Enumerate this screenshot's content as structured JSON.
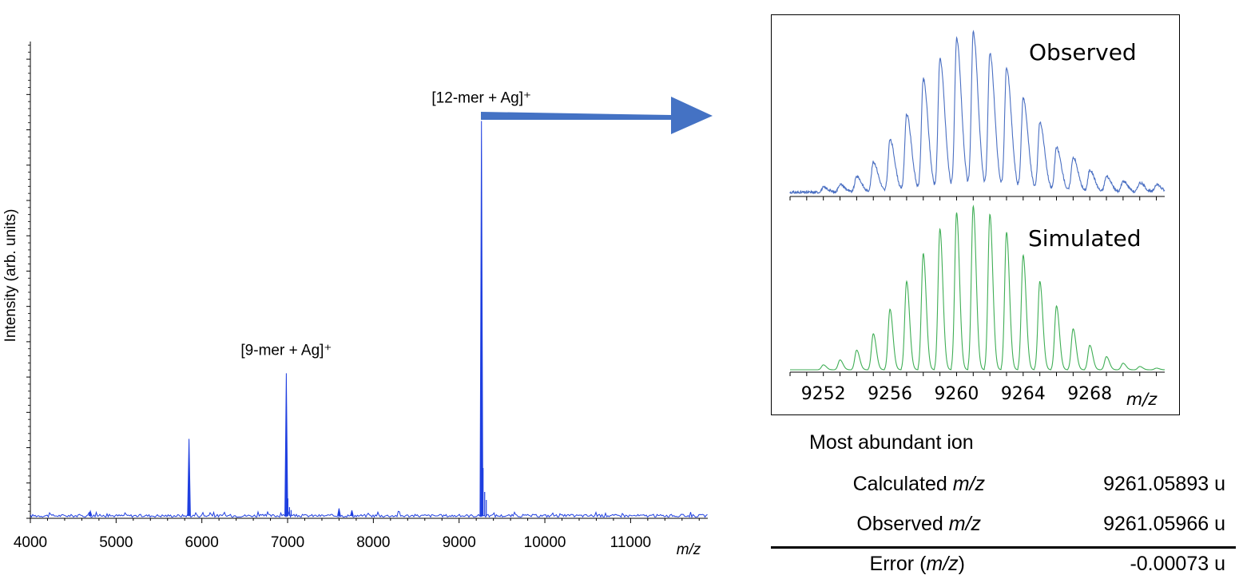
{
  "chart_data": [
    {
      "type": "line",
      "xlabel": "m/z",
      "ylabel": "Intensity (arb. units)",
      "xlim": [
        4000,
        11900
      ],
      "ylim": [
        0,
        1.2
      ],
      "x_ticks": [
        4000,
        5000,
        6000,
        7000,
        8000,
        9000,
        10000,
        11000
      ],
      "color": "#1f3fe0",
      "peaks": [
        {
          "x": 4700,
          "y": 0.018
        },
        {
          "x": 5850,
          "y": 0.2
        },
        {
          "x": 6985,
          "y": 0.365
        },
        {
          "x": 7600,
          "y": 0.025
        },
        {
          "x": 7750,
          "y": 0.02
        },
        {
          "x": 9261,
          "y": 1.0
        }
      ],
      "annotations": [
        {
          "text": "[9-mer + Ag]⁺",
          "x": 6985,
          "y": 0.365
        },
        {
          "text": "[12-mer + Ag]⁺",
          "x": 9261,
          "y": 1.0
        }
      ]
    },
    {
      "type": "line",
      "panel": "Observed",
      "color": "#4a6fc2",
      "xlabel": "m/z",
      "xlim": [
        9250,
        9272.5
      ],
      "x_ticks": [
        9252,
        9256,
        9260,
        9264,
        9268
      ],
      "x": [
        9252,
        9253,
        9254,
        9255,
        9256,
        9257,
        9258,
        9259,
        9260,
        9261,
        9262,
        9263,
        9264,
        9265,
        9266,
        9267,
        9268,
        9269,
        9270,
        9271,
        9272
      ],
      "y": [
        0.03,
        0.05,
        0.1,
        0.19,
        0.33,
        0.49,
        0.71,
        0.84,
        0.96,
        1.0,
        0.87,
        0.78,
        0.59,
        0.44,
        0.28,
        0.22,
        0.14,
        0.1,
        0.07,
        0.06,
        0.05
      ]
    },
    {
      "type": "line",
      "panel": "Simulated",
      "color": "#3fae55",
      "xlabel": "m/z",
      "xlim": [
        9250,
        9272.5
      ],
      "x_ticks": [
        9252,
        9256,
        9260,
        9264,
        9268
      ],
      "x": [
        9252,
        9253,
        9254,
        9255,
        9256,
        9257,
        9258,
        9259,
        9260,
        9261,
        9262,
        9263,
        9264,
        9265,
        9266,
        9267,
        9268,
        9269,
        9270,
        9271,
        9272
      ],
      "y": [
        0.03,
        0.06,
        0.12,
        0.22,
        0.37,
        0.54,
        0.71,
        0.86,
        0.96,
        1.0,
        0.95,
        0.84,
        0.7,
        0.54,
        0.39,
        0.25,
        0.15,
        0.08,
        0.04,
        0.02,
        0.01
      ]
    }
  ],
  "inset": {
    "observed_title": "Observed",
    "simulated_title": "Simulated"
  },
  "results": {
    "heading": "Most abundant ion",
    "calculated_label": "Calculated",
    "observed_label": "Observed",
    "error_label": "Error",
    "mz": "m/z",
    "calculated_value": "9261.05893 u",
    "observed_value": "9261.05966 u",
    "error_value": "-0.00073 u"
  }
}
